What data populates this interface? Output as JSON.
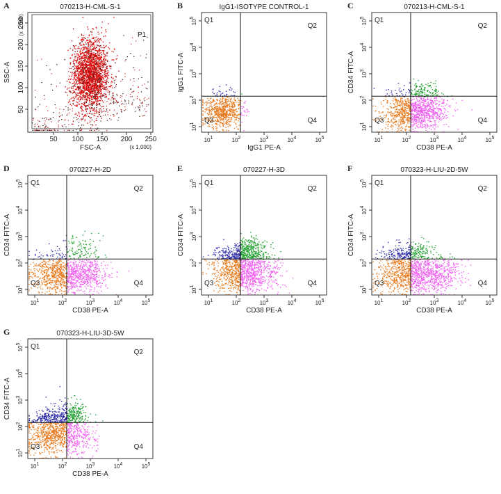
{
  "panels": [
    {
      "letter": "A",
      "title": "070213-H-CML-S-1",
      "x_label": "FSC-A",
      "y_label": "SSC-A",
      "x_ticks": [
        "50",
        "100",
        "150",
        "200",
        "250"
      ],
      "y_ticks": [
        "50",
        "100",
        "150",
        "200",
        "250"
      ],
      "x_multiplier": "(x 1,000)",
      "y_multiplier": "(x 1,000)",
      "gate": "P1"
    },
    {
      "letter": "B",
      "title": "IgG1-ISOTYPE CONTROL-1",
      "x_label": "IgG1 PE-A",
      "y_label": "IgG1 FITC-A",
      "quadrants": [
        "Q1",
        "Q2",
        "Q3",
        "Q4"
      ]
    },
    {
      "letter": "C",
      "title": "070213-H-CML-S-1",
      "x_label": "CD38 PE-A",
      "y_label": "CD34 FITC-A",
      "quadrants": [
        "Q1",
        "Q2",
        "Q3",
        "Q4"
      ]
    },
    {
      "letter": "D",
      "title": "070227-H-2D",
      "x_label": "CD38 PE-A",
      "y_label": "CD34 FITC-A",
      "quadrants": [
        "Q1",
        "Q2",
        "Q3",
        "Q4"
      ]
    },
    {
      "letter": "E",
      "title": "070227-H-3D",
      "x_label": "CD38 PE-A",
      "y_label": "CD34 FITC-A",
      "quadrants": [
        "Q1",
        "Q2",
        "Q3",
        "Q4"
      ]
    },
    {
      "letter": "F",
      "title": "070323-H-LIU-2D-5W",
      "x_label": "CD38 PE-A",
      "y_label": "CD34 FITC-A",
      "quadrants": [
        "Q1",
        "Q2",
        "Q3",
        "Q4"
      ]
    },
    {
      "letter": "G",
      "title": "070323-H-LIU-3D-5W",
      "x_label": "CD38 PE-A",
      "y_label": "CD34 FITC-A",
      "quadrants": [
        "Q1",
        "Q2",
        "Q3",
        "Q4"
      ]
    }
  ],
  "log_tick_base": "10",
  "log_tick_exponents": [
    "1",
    "2",
    "3",
    "4",
    "5"
  ]
}
